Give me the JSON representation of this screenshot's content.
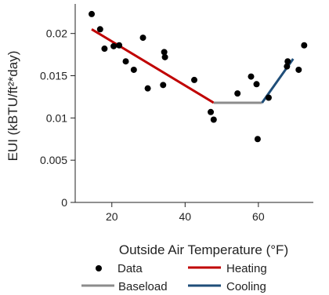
{
  "chart_data": {
    "type": "scatter",
    "xlabel": "Outside Air Temperature (°F)",
    "ylabel": "EUI (kBTU/ft²*day)",
    "xlim": [
      10,
      75
    ],
    "ylim": [
      0,
      0.0235
    ],
    "x_ticks": [
      20,
      40,
      60
    ],
    "x_tick_labels": [
      "20",
      "40",
      "60"
    ],
    "y_ticks": [
      0,
      0.005,
      0.01,
      0.015,
      0.02
    ],
    "y_tick_labels": [
      "0",
      "0.005",
      "0.01",
      "0.015",
      "0.02"
    ],
    "grid": false,
    "legend_position": "bottom",
    "legend": [
      {
        "label": "Data",
        "kind": "marker",
        "color": "#000000"
      },
      {
        "label": "Heating",
        "kind": "line",
        "color": "#c00000"
      },
      {
        "label": "Baseload",
        "kind": "line",
        "color": "#8c8c8c"
      },
      {
        "label": "Cooling",
        "kind": "line",
        "color": "#1f4e79"
      }
    ],
    "points": [
      {
        "x": 14.5,
        "y": 0.0223
      },
      {
        "x": 16.8,
        "y": 0.0205
      },
      {
        "x": 18.0,
        "y": 0.0182
      },
      {
        "x": 20.5,
        "y": 0.0185
      },
      {
        "x": 22.0,
        "y": 0.0186
      },
      {
        "x": 23.8,
        "y": 0.0167
      },
      {
        "x": 26.0,
        "y": 0.0157
      },
      {
        "x": 28.5,
        "y": 0.0195
      },
      {
        "x": 29.8,
        "y": 0.0135
      },
      {
        "x": 34.3,
        "y": 0.0178
      },
      {
        "x": 34.5,
        "y": 0.0172
      },
      {
        "x": 34.0,
        "y": 0.0139
      },
      {
        "x": 42.5,
        "y": 0.0145
      },
      {
        "x": 47.0,
        "y": 0.0107
      },
      {
        "x": 47.8,
        "y": 0.0098
      },
      {
        "x": 54.3,
        "y": 0.0129
      },
      {
        "x": 58.0,
        "y": 0.0149
      },
      {
        "x": 59.5,
        "y": 0.014
      },
      {
        "x": 59.8,
        "y": 0.0075
      },
      {
        "x": 62.8,
        "y": 0.0124
      },
      {
        "x": 68.0,
        "y": 0.0167
      },
      {
        "x": 67.8,
        "y": 0.0161
      },
      {
        "x": 71.0,
        "y": 0.0157
      },
      {
        "x": 72.5,
        "y": 0.0186
      }
    ],
    "fit": [
      {
        "name": "Heating",
        "color": "#c00000",
        "x": [
          14.5,
          47.8
        ],
        "y": [
          0.0205,
          0.0118
        ]
      },
      {
        "name": "Baseload",
        "color": "#8c8c8c",
        "x": [
          47.8,
          61.0
        ],
        "y": [
          0.0118,
          0.0118
        ]
      },
      {
        "name": "Cooling",
        "color": "#1f4e79",
        "x": [
          61.0,
          69.5
        ],
        "y": [
          0.0118,
          0.017
        ]
      }
    ]
  }
}
